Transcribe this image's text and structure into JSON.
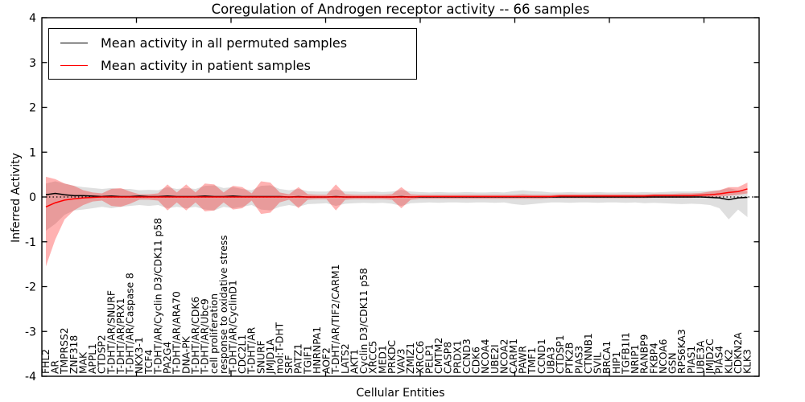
{
  "chart_data": {
    "type": "line",
    "title": "Coregulation of Androgen receptor activity -- 66 samples",
    "xlabel": "Cellular Entities",
    "ylabel": "Inferred Activity",
    "ylim": [
      -4,
      4
    ],
    "yticks": [
      4,
      3,
      2,
      1,
      0,
      -1,
      -2,
      -3,
      -4
    ],
    "grid": false,
    "legend_position": "upper left",
    "legend": [
      {
        "label": "Mean activity in all permuted samples",
        "color": "#000000"
      },
      {
        "label": "Mean activity in patient samples",
        "color": "#ff0000"
      }
    ],
    "zero_line": {
      "style": "dotted",
      "color": "#000000",
      "y": 0
    },
    "categories": [
      "FHL2",
      "AR",
      "TMPRSS2",
      "ZNF318",
      "MAK",
      "APPL1",
      "CTDSP2",
      "T-DHT/AR/SNURF",
      "T-DHT/AR/PRX1",
      "T-DHT/AR/Caspase 8",
      "NKX3-1",
      "TCF4",
      "T-DHT/AR/Cyclin D3/CDK11 p58",
      "PA2G4",
      "T-DHT/AR/ARA70",
      "DNA-PK",
      "T-DHT/AR/CDK6",
      "T-DHT/AR/Ubc9",
      "cell proliferation",
      "response to oxidative stress",
      "T-DHT/AR/CyclinD1",
      "CDC2L1",
      "T-DHT/AR",
      "SNURF",
      "JMJD1A",
      "mol:T-DHT",
      "SRF",
      "PATZ1",
      "TGIF1",
      "HNRNPA1",
      "AOF2",
      "T-DHT/AR/TIF2/CARM1",
      "LATS2",
      "AKT1",
      "Cyclin D3/CDK11 p58",
      "XRCC5",
      "MED1",
      "PRKDC",
      "VAV3",
      "ZMIZ1",
      "XRCC6",
      "PELP1",
      "CMTM2",
      "CASP8",
      "PRDX1",
      "CCND3",
      "CDK6",
      "NCOA4",
      "UBE2I",
      "NCOA2",
      "CARM1",
      "PAWR",
      "TMF1",
      "CCND1",
      "UBA3",
      "CTDSP1",
      "PTK2B",
      "PIAS3",
      "CTNNB1",
      "SVIL",
      "BRCA1",
      "HIP1",
      "TGFB1I1",
      "NRIP1",
      "RANBP9",
      "FKBP4",
      "NCOA6",
      "GSN",
      "RPS6KA3",
      "PIAS1",
      "UBE3A",
      "JMJD2C",
      "PIAS4",
      "KLK2",
      "CDKN2A",
      "KLK3"
    ],
    "series": [
      {
        "name": "Mean activity in all permuted samples",
        "kind": "line",
        "color": "#000000",
        "values": [
          0.05,
          0.08,
          0.05,
          0.03,
          0.03,
          0.02,
          0.01,
          0.02,
          0.01,
          0.01,
          0.02,
          0.01,
          0.01,
          0.02,
          0.01,
          0.01,
          0.01,
          0.02,
          0.01,
          0.01,
          0.02,
          0.01,
          0.01,
          0.01,
          0.01,
          0.01,
          0.0,
          0.01,
          0.0,
          0.0,
          0.0,
          0.01,
          0.0,
          0.0,
          0.0,
          0.0,
          0.0,
          0.0,
          0.01,
          0.0,
          0.0,
          0.0,
          0.0,
          0.0,
          0.0,
          0.0,
          0.0,
          0.0,
          0.0,
          0.0,
          0.0,
          0.0,
          0.0,
          0.0,
          0.0,
          0.0,
          0.0,
          0.0,
          0.0,
          0.0,
          0.0,
          0.0,
          0.0,
          0.0,
          0.0,
          0.0,
          0.0,
          0.0,
          0.0,
          0.0,
          0.0,
          -0.01,
          -0.02,
          -0.06,
          -0.02,
          -0.01
        ]
      },
      {
        "name": "Mean activity in patient samples",
        "kind": "line",
        "color": "#ff0000",
        "values": [
          -0.22,
          -0.13,
          -0.07,
          -0.04,
          -0.02,
          -0.01,
          0.0,
          0.0,
          0.0,
          0.0,
          0.0,
          0.0,
          0.0,
          0.0,
          0.0,
          0.0,
          0.0,
          0.0,
          0.0,
          0.0,
          0.0,
          0.0,
          0.0,
          0.0,
          0.0,
          0.0,
          0.0,
          0.0,
          0.0,
          0.0,
          0.0,
          0.0,
          0.0,
          0.0,
          0.0,
          0.0,
          0.0,
          0.0,
          0.0,
          0.0,
          0.01,
          0.01,
          0.01,
          0.01,
          0.01,
          0.01,
          0.01,
          0.01,
          0.01,
          0.01,
          0.01,
          0.01,
          0.01,
          0.01,
          0.01,
          0.02,
          0.02,
          0.02,
          0.02,
          0.02,
          0.02,
          0.02,
          0.02,
          0.02,
          0.02,
          0.03,
          0.03,
          0.03,
          0.03,
          0.03,
          0.04,
          0.05,
          0.07,
          0.1,
          0.12,
          0.18
        ]
      },
      {
        "name": "Permuted samples spread",
        "kind": "band",
        "color": "#aaaaaa",
        "opacity": 0.38,
        "upper": [
          0.3,
          0.35,
          0.3,
          0.25,
          0.22,
          0.2,
          0.18,
          0.2,
          0.18,
          0.18,
          0.15,
          0.16,
          0.15,
          0.22,
          0.18,
          0.2,
          0.18,
          0.25,
          0.26,
          0.2,
          0.22,
          0.18,
          0.15,
          0.25,
          0.26,
          0.18,
          0.15,
          0.18,
          0.13,
          0.12,
          0.12,
          0.17,
          0.12,
          0.12,
          0.11,
          0.12,
          0.11,
          0.12,
          0.16,
          0.12,
          0.11,
          0.1,
          0.11,
          0.1,
          0.1,
          0.11,
          0.1,
          0.1,
          0.11,
          0.1,
          0.13,
          0.15,
          0.13,
          0.12,
          0.1,
          0.1,
          0.11,
          0.1,
          0.1,
          0.11,
          0.1,
          0.1,
          0.11,
          0.1,
          0.11,
          0.1,
          0.11,
          0.12,
          0.12,
          0.12,
          0.13,
          0.14,
          0.15,
          0.2,
          0.15,
          0.12
        ],
        "lower": [
          -0.75,
          -0.6,
          -0.4,
          -0.3,
          -0.28,
          -0.25,
          -0.22,
          -0.25,
          -0.22,
          -0.2,
          -0.18,
          -0.2,
          -0.18,
          -0.25,
          -0.22,
          -0.25,
          -0.22,
          -0.28,
          -0.3,
          -0.22,
          -0.25,
          -0.22,
          -0.18,
          -0.28,
          -0.3,
          -0.22,
          -0.18,
          -0.22,
          -0.16,
          -0.15,
          -0.14,
          -0.2,
          -0.15,
          -0.14,
          -0.13,
          -0.14,
          -0.13,
          -0.15,
          -0.2,
          -0.14,
          -0.13,
          -0.12,
          -0.13,
          -0.12,
          -0.12,
          -0.13,
          -0.12,
          -0.12,
          -0.13,
          -0.12,
          -0.16,
          -0.18,
          -0.16,
          -0.14,
          -0.12,
          -0.12,
          -0.13,
          -0.12,
          -0.12,
          -0.13,
          -0.12,
          -0.12,
          -0.13,
          -0.12,
          -0.14,
          -0.13,
          -0.14,
          -0.15,
          -0.16,
          -0.15,
          -0.16,
          -0.18,
          -0.25,
          -0.5,
          -0.28,
          -0.45
        ]
      },
      {
        "name": "Patient samples spread",
        "kind": "band",
        "color": "#ff0000",
        "opacity": 0.3,
        "upper": [
          0.45,
          0.4,
          0.3,
          0.25,
          0.15,
          0.1,
          0.08,
          0.18,
          0.2,
          0.12,
          0.06,
          0.06,
          0.08,
          0.28,
          0.1,
          0.28,
          0.1,
          0.3,
          0.28,
          0.1,
          0.25,
          0.22,
          0.08,
          0.35,
          0.32,
          0.1,
          0.06,
          0.22,
          0.06,
          0.05,
          0.05,
          0.28,
          0.06,
          0.05,
          0.05,
          0.05,
          0.05,
          0.06,
          0.22,
          0.06,
          0.05,
          0.05,
          0.05,
          0.05,
          0.05,
          0.05,
          0.05,
          0.05,
          0.05,
          0.05,
          0.05,
          0.06,
          0.05,
          0.05,
          0.05,
          0.06,
          0.06,
          0.06,
          0.06,
          0.06,
          0.06,
          0.06,
          0.06,
          0.06,
          0.06,
          0.07,
          0.07,
          0.07,
          0.08,
          0.08,
          0.09,
          0.12,
          0.15,
          0.22,
          0.22,
          0.32
        ],
        "lower": [
          -1.55,
          -0.95,
          -0.5,
          -0.3,
          -0.18,
          -0.1,
          -0.08,
          -0.2,
          -0.22,
          -0.15,
          -0.06,
          -0.06,
          -0.08,
          -0.3,
          -0.12,
          -0.3,
          -0.12,
          -0.32,
          -0.3,
          -0.12,
          -0.28,
          -0.25,
          -0.08,
          -0.38,
          -0.35,
          -0.12,
          -0.06,
          -0.25,
          -0.06,
          -0.05,
          -0.05,
          -0.3,
          -0.06,
          -0.05,
          -0.05,
          -0.05,
          -0.05,
          -0.06,
          -0.25,
          -0.06,
          -0.04,
          -0.04,
          -0.04,
          -0.04,
          -0.04,
          -0.04,
          -0.04,
          -0.04,
          -0.04,
          -0.04,
          -0.04,
          -0.04,
          -0.04,
          -0.04,
          -0.03,
          -0.03,
          -0.03,
          -0.03,
          -0.03,
          -0.03,
          -0.03,
          -0.03,
          -0.03,
          -0.03,
          -0.03,
          -0.02,
          -0.02,
          -0.02,
          -0.02,
          -0.02,
          -0.01,
          0.0,
          0.01,
          0.03,
          0.05,
          0.08
        ]
      }
    ]
  }
}
